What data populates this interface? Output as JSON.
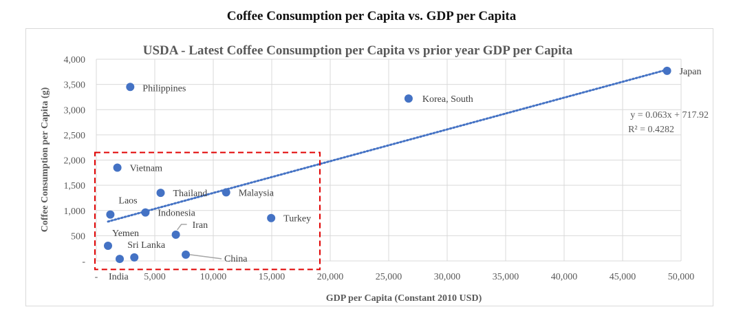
{
  "chart_data": {
    "type": "scatter",
    "title": "Coffee Consumption per Capita vs. GDP per Capita",
    "subtitle": "USDA - Latest Coffee Consumption per Capita vs prior year GDP per Capita",
    "xlabel": "GDP per Capita (Constant 2010 USD)",
    "ylabel": "Coffee Consumption per Capita (g)",
    "xlim": [
      0,
      50000
    ],
    "ylim": [
      0,
      4000
    ],
    "x_ticks": [
      0,
      5000,
      10000,
      15000,
      20000,
      25000,
      30000,
      35000,
      40000,
      45000,
      50000
    ],
    "x_tick_labels": [
      "-",
      "5,000",
      "10,000",
      "15,000",
      "20,000",
      "25,000",
      "30,000",
      "35,000",
      "40,000",
      "45,000",
      "50,000"
    ],
    "y_ticks": [
      0,
      500,
      1000,
      1500,
      2000,
      2500,
      3000,
      3500,
      4000
    ],
    "y_tick_labels": [
      "-",
      "500",
      "1,000",
      "1,500",
      "2,000",
      "2,500",
      "3,000",
      "3,500",
      "4,000"
    ],
    "grid": true,
    "series": [
      {
        "name": "Countries",
        "color": "#4472C4",
        "points": [
          {
            "label": "Japan",
            "x": 48800,
            "y": 3770
          },
          {
            "label": "Korea, South",
            "x": 26700,
            "y": 3220
          },
          {
            "label": "Philippines",
            "x": 2900,
            "y": 3450
          },
          {
            "label": "Vietnam",
            "x": 1800,
            "y": 1850
          },
          {
            "label": "Thailand",
            "x": 5500,
            "y": 1350
          },
          {
            "label": "Malaysia",
            "x": 11100,
            "y": 1360
          },
          {
            "label": "Laos",
            "x": 1200,
            "y": 920
          },
          {
            "label": "Indonesia",
            "x": 4200,
            "y": 960
          },
          {
            "label": "Turkey",
            "x": 14950,
            "y": 850
          },
          {
            "label": "Iran",
            "x": 6800,
            "y": 520
          },
          {
            "label": "Yemen",
            "x": 1000,
            "y": 300
          },
          {
            "label": "India",
            "x": 2000,
            "y": 40
          },
          {
            "label": "Sri Lanka",
            "x": 3250,
            "y": 70
          },
          {
            "label": "China",
            "x": 7650,
            "y": 125
          }
        ]
      }
    ],
    "trendline": {
      "type": "linear",
      "style": "dotted",
      "color": "#4472C4",
      "slope": 0.063,
      "intercept": 717.92,
      "x_range": [
        1000,
        48800
      ],
      "equation_label": "y = 0.063x + 717.92",
      "r2_label": "R² = 0.4282"
    },
    "annotations": {
      "highlight_box": {
        "color": "#E00000",
        "style": "dashed",
        "x_range": [
          0,
          19000
        ],
        "y_range": [
          -250,
          2150
        ]
      },
      "highlighted_label": {
        "label": "China",
        "color": "#E00000"
      }
    },
    "legend": "none"
  }
}
